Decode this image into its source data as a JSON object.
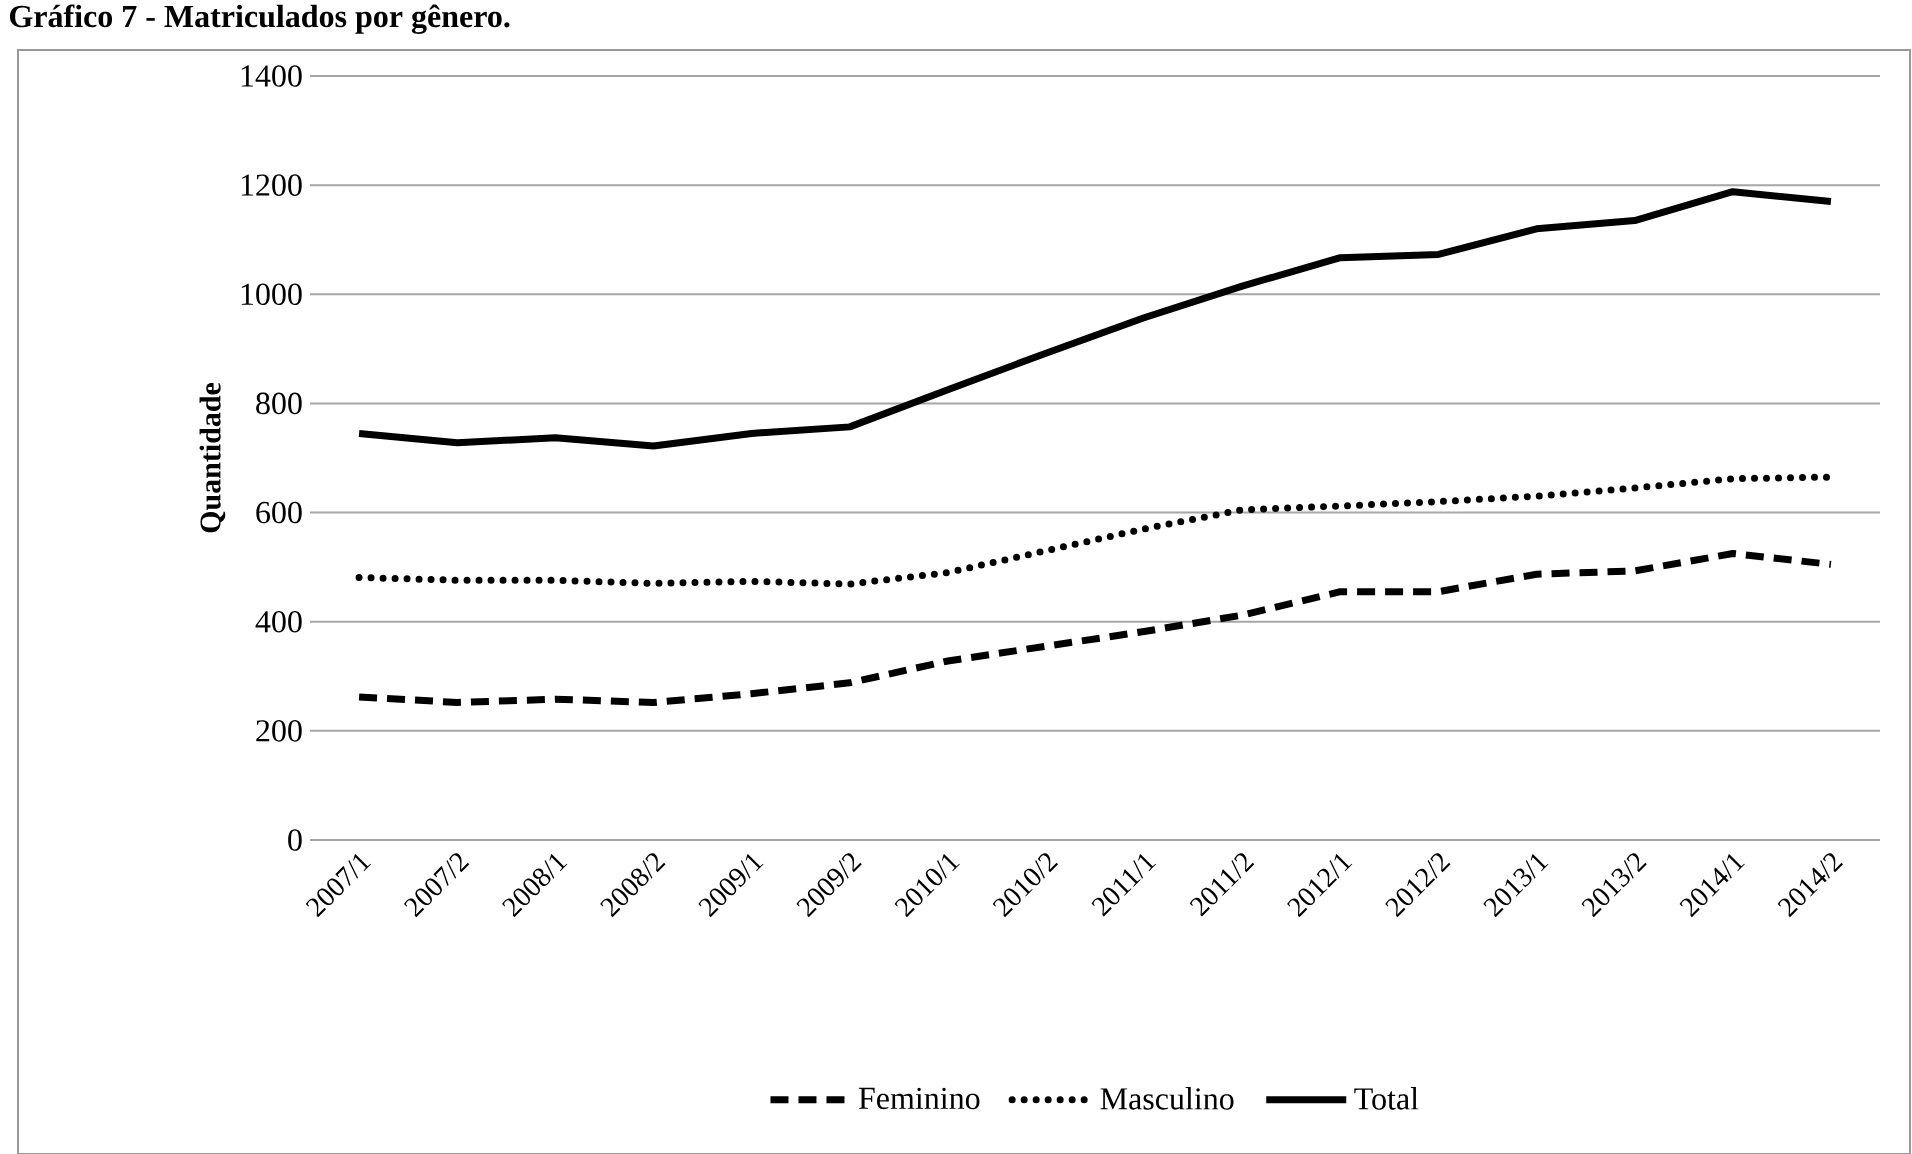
{
  "chart_data": {
    "type": "line",
    "title": "Gráfico 7 - Matriculados por gênero.",
    "ylabel": "Quantidade",
    "categories": [
      "2007/1",
      "2007/2",
      "2008/1",
      "2008/2",
      "2009/1",
      "2009/2",
      "2010/1",
      "2010/2",
      "2011/1",
      "2011/2",
      "2012/1",
      "2012/2",
      "2013/1",
      "2013/2",
      "2014/1",
      "2014/2"
    ],
    "series": [
      {
        "name": "Feminino",
        "color": "#000000",
        "line_style": "dashed",
        "values": [
          262,
          252,
          258,
          252,
          268,
          288,
          328,
          355,
          382,
          412,
          455,
          455,
          487,
          493,
          525,
          505
        ]
      },
      {
        "name": "Masculino",
        "color": "#000000",
        "line_style": "dotted",
        "values": [
          481,
          476,
          476,
          470,
          474,
          469,
          490,
          530,
          570,
          605,
          612,
          620,
          630,
          645,
          662,
          665
        ]
      },
      {
        "name": "Total",
        "color": "#000000",
        "line_style": "solid",
        "values": [
          745,
          728,
          737,
          722,
          745,
          757,
          825,
          892,
          957,
          1015,
          1067,
          1073,
          1120,
          1135,
          1188,
          1170
        ]
      }
    ],
    "ylim": [
      0,
      1400
    ],
    "yticks": [
      0,
      200,
      400,
      600,
      800,
      1000,
      1200,
      1400
    ],
    "grid": "y",
    "legend": "bottom",
    "marker": "none"
  }
}
